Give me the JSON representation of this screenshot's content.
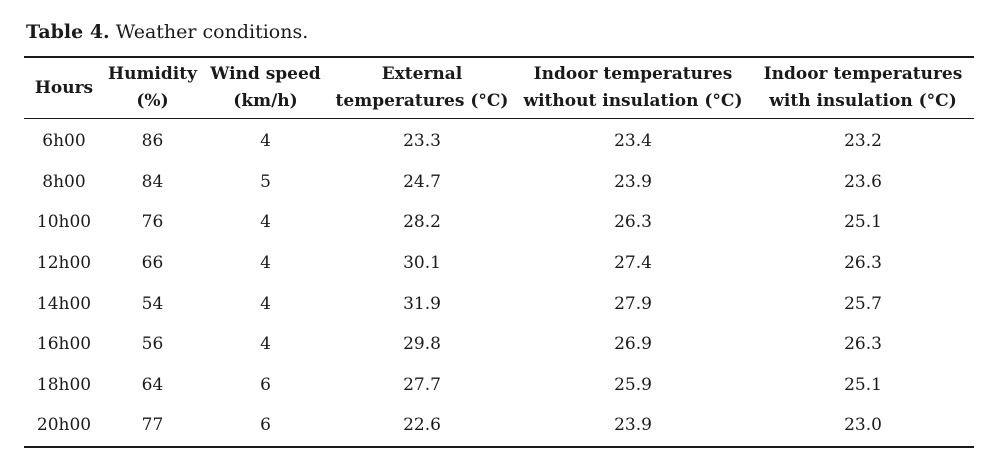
{
  "caption": {
    "label": "Table 4.",
    "text": " Weather conditions."
  },
  "table": {
    "headers": [
      [
        "Hours"
      ],
      [
        "Humidity",
        "(%)"
      ],
      [
        "Wind speed",
        "(km/h)"
      ],
      [
        "External",
        "temperatures (°C)"
      ],
      [
        "Indoor temperatures",
        "without insulation (°C)"
      ],
      [
        "Indoor temperatures",
        "with insulation (°C)"
      ]
    ],
    "rows": [
      [
        "6h00",
        "86",
        "4",
        "23.3",
        "23.4",
        "23.2"
      ],
      [
        "8h00",
        "84",
        "5",
        "24.7",
        "23.9",
        "23.6"
      ],
      [
        "10h00",
        "76",
        "4",
        "28.2",
        "26.3",
        "25.1"
      ],
      [
        "12h00",
        "66",
        "4",
        "30.1",
        "27.4",
        "26.3"
      ],
      [
        "14h00",
        "54",
        "4",
        "31.9",
        "27.9",
        "25.7"
      ],
      [
        "16h00",
        "56",
        "4",
        "29.8",
        "26.9",
        "26.3"
      ],
      [
        "18h00",
        "64",
        "6",
        "27.7",
        "25.9",
        "25.1"
      ],
      [
        "20h00",
        "77",
        "6",
        "22.6",
        "23.9",
        "23.0"
      ]
    ]
  }
}
